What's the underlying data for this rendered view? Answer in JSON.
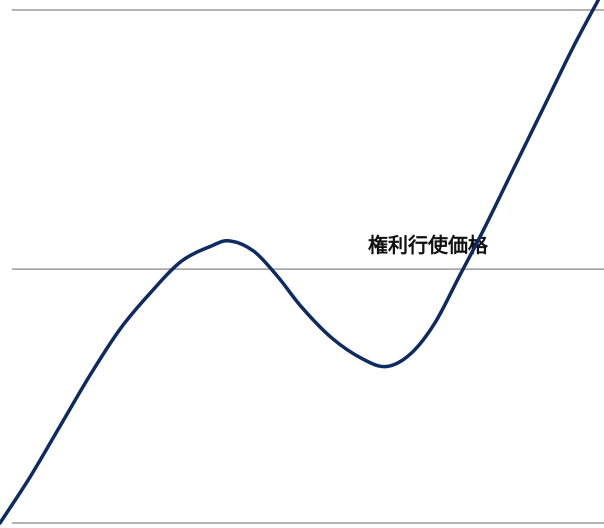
{
  "chart_data": {
    "type": "line",
    "title": "",
    "xlabel": "",
    "ylabel": "",
    "grid": false,
    "legend": "none",
    "xlim": [
      0,
      100
    ],
    "ylim": [
      0,
      100
    ],
    "series": [
      {
        "color": "#0d2a63",
        "x": [
          0,
          5,
          10,
          15,
          20,
          25,
          30,
          35,
          38,
          42,
          46,
          50,
          55,
          60,
          64,
          68,
          72,
          76,
          80,
          85,
          90,
          95,
          100
        ],
        "y": [
          0,
          9,
          19,
          29,
          38,
          45,
          51,
          54,
          55,
          53,
          48,
          42,
          36,
          32,
          30.5,
          33,
          39,
          48,
          57,
          69,
          81,
          93,
          104
        ]
      }
    ],
    "reference_lines": [
      {
        "y": 100,
        "label": "",
        "color": "#999999"
      },
      {
        "y": 49.5,
        "label": "権利行使価格",
        "color": "#999999"
      },
      {
        "y": 0,
        "label": "",
        "color": "#999999"
      }
    ]
  }
}
